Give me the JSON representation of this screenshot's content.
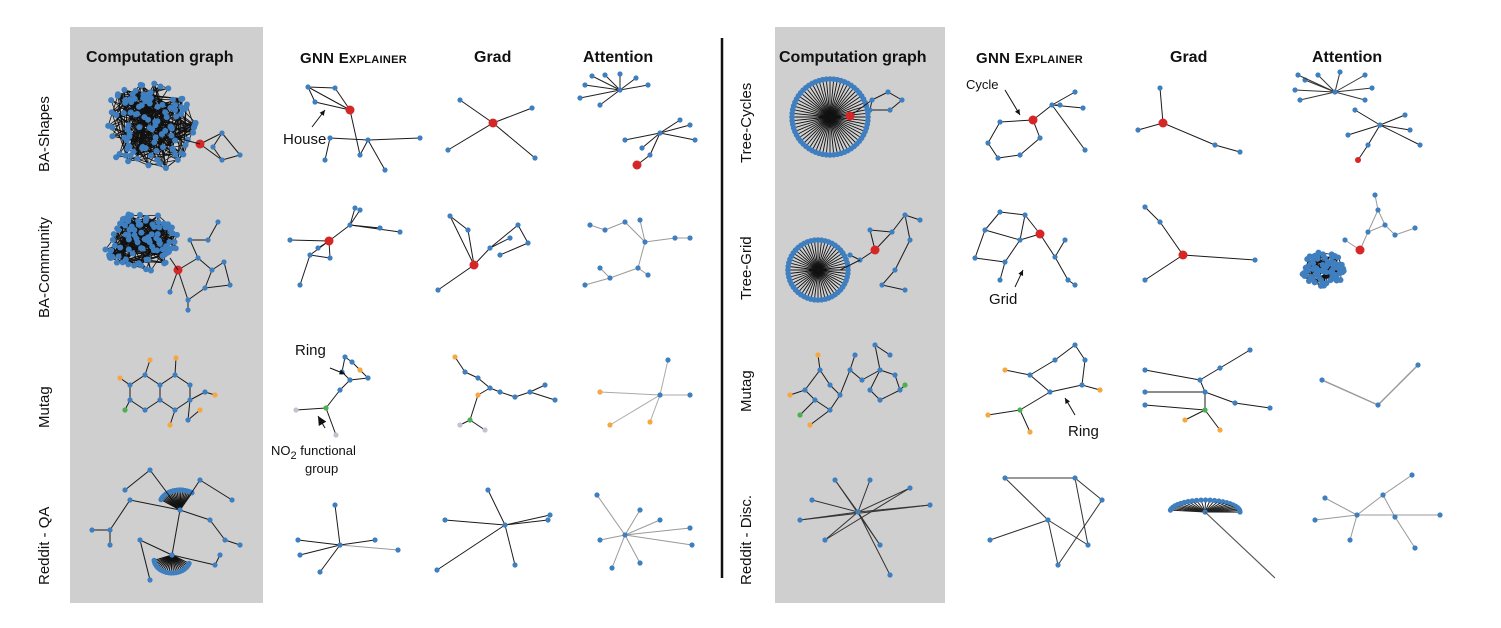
{
  "headers": {
    "left": [
      "Computation graph",
      "GNN Explainer",
      "Grad",
      "Attention"
    ],
    "right": [
      "Computation graph",
      "GNN Explainer",
      "Grad",
      "Attention"
    ]
  },
  "rows": {
    "left": [
      "BA-Shapes",
      "BA-Community",
      "Mutag",
      "Reddit - QA"
    ],
    "right": [
      "Tree-Cycles",
      "Tree-Grid",
      "Mutag",
      "Reddit - Disc."
    ]
  },
  "annotations": {
    "house": "House",
    "ring_left": "Ring",
    "no2_main": "NO",
    "no2_sub": "2",
    "no2_rest": "functional",
    "no2_group": "group",
    "cycle": "Cycle",
    "grid": "Grid",
    "ring_right": "Ring"
  },
  "colors": {
    "panel_bg": "#cfcfcf",
    "node_blue": "#3f7fbf",
    "node_red": "#d62728",
    "node_orange": "#f5a742",
    "node_green": "#4caf50",
    "edge_dark": "#1a1a1a",
    "edge_gray": "#9a9a9a",
    "divider": "#111111"
  }
}
